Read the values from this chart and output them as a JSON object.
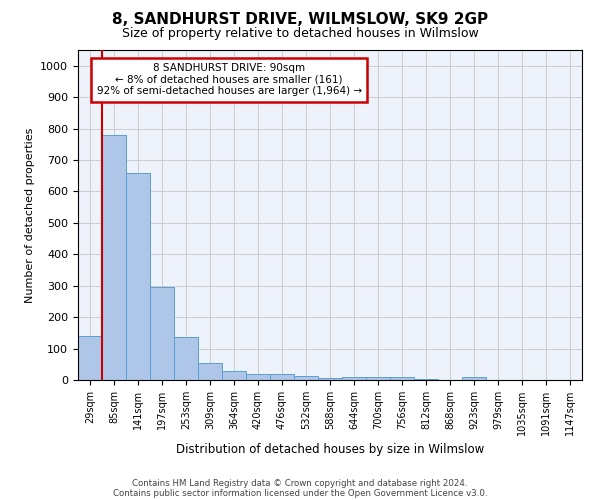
{
  "title": "8, SANDHURST DRIVE, WILMSLOW, SK9 2GP",
  "subtitle": "Size of property relative to detached houses in Wilmslow",
  "xlabel": "Distribution of detached houses by size in Wilmslow",
  "ylabel": "Number of detached properties",
  "categories": [
    "29sqm",
    "85sqm",
    "141sqm",
    "197sqm",
    "253sqm",
    "309sqm",
    "364sqm",
    "420sqm",
    "476sqm",
    "532sqm",
    "588sqm",
    "644sqm",
    "700sqm",
    "756sqm",
    "812sqm",
    "868sqm",
    "923sqm",
    "979sqm",
    "1035sqm",
    "1091sqm",
    "1147sqm"
  ],
  "bar_values": [
    140,
    780,
    660,
    295,
    138,
    55,
    28,
    18,
    18,
    13,
    5,
    10,
    10,
    8,
    2,
    0,
    10,
    0,
    0,
    0,
    0
  ],
  "bar_color": "#aec6e8",
  "bar_edge_color": "#5a9fd4",
  "vline_x_index": 1,
  "ylim": [
    0,
    1050
  ],
  "yticks": [
    0,
    100,
    200,
    300,
    400,
    500,
    600,
    700,
    800,
    900,
    1000
  ],
  "annotation_line1": "8 SANDHURST DRIVE: 90sqm",
  "annotation_line2": "← 8% of detached houses are smaller (161)",
  "annotation_line3": "92% of semi-detached houses are larger (1,964) →",
  "annotation_box_edgecolor": "#cc0000",
  "vline_color": "#cc0000",
  "footer_line1": "Contains HM Land Registry data © Crown copyright and database right 2024.",
  "footer_line2": "Contains public sector information licensed under the Open Government Licence v3.0.",
  "grid_color": "#cccccc",
  "background_color": "#eef2fb"
}
